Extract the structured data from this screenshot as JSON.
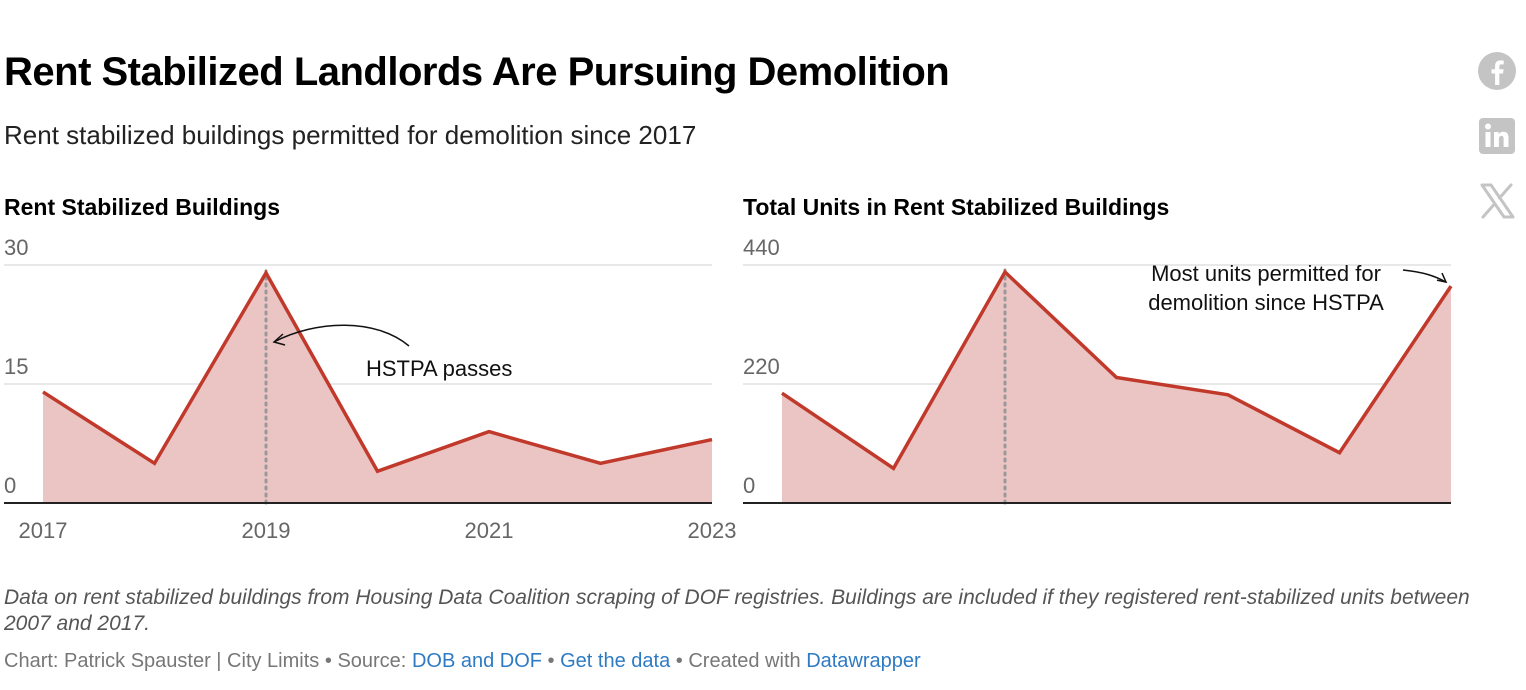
{
  "header": {
    "title": "Rent Stabilized Landlords Are Pursuing Demolition",
    "subtitle": "Rent stabilized buildings permitted for demolition since 2017"
  },
  "share": {
    "icons": [
      "facebook-icon",
      "linkedin-icon",
      "x-icon"
    ]
  },
  "colors": {
    "line": "#c0392b",
    "fill": "#ebc4c4",
    "grid": "#e0e0e0",
    "axis": "#222222",
    "tick": "#666666",
    "icon": "#c4c4c4",
    "link": "#2e7bc4"
  },
  "chart_data": [
    {
      "type": "area",
      "title": "Rent Stabilized Buildings",
      "x": [
        2017,
        2018,
        2019,
        2020,
        2021,
        2022,
        2023
      ],
      "x_tick_labels": [
        "2017",
        "2019",
        "2021",
        "2023"
      ],
      "x_tick_values": [
        2017,
        2019,
        2021,
        2023
      ],
      "y_ticks": [
        "0",
        "15",
        "30"
      ],
      "y_tick_values": [
        0,
        15,
        30
      ],
      "ylim": [
        0,
        30
      ],
      "series": [
        {
          "values": [
            14,
            5,
            29,
            4,
            9,
            5,
            8
          ]
        }
      ],
      "reference_line": {
        "x": 2019,
        "style": "dotted"
      },
      "annotation": {
        "text": "HSTPA passes",
        "x": 2019,
        "y": 21
      },
      "grid": true
    },
    {
      "type": "area",
      "title": "Total Units in Rent Stabilized Buildings",
      "x": [
        2017,
        2018,
        2019,
        2020,
        2021,
        2022,
        2023
      ],
      "x_tick_labels": [],
      "y_ticks": [
        "0",
        "220",
        "440"
      ],
      "y_tick_values": [
        0,
        220,
        440
      ],
      "ylim": [
        0,
        440
      ],
      "series": [
        {
          "values": [
            203,
            64,
            427,
            232,
            200,
            93,
            401
          ]
        }
      ],
      "reference_line": {
        "x": 2019,
        "style": "dotted"
      },
      "annotation": {
        "lines": [
          "Most units permitted for",
          "demolition since HSTPA"
        ],
        "x": 2023,
        "y": 401
      },
      "grid": true
    }
  ],
  "footer": {
    "notes": "Data on rent stabilized buildings from Housing Data Coalition scraping of DOF registries. Buildings are included if they registered rent-stabilized units between 2007 and 2017.",
    "credit": "Chart: Patrick Spauster | City Limits",
    "source_label": "Source:",
    "source_link": "DOB and DOF",
    "get_data": "Get the data",
    "created_with": "Created with",
    "tool": "Datawrapper",
    "separator": "•"
  }
}
